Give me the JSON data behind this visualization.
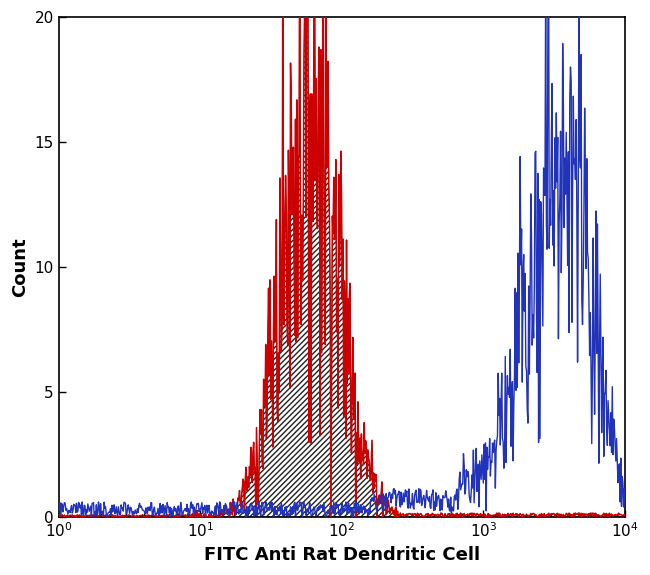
{
  "title": "",
  "xlabel": "FITC Anti Rat Dendritic Cell",
  "ylabel": "Count",
  "xlim": [
    1,
    10000
  ],
  "ylim": [
    0,
    20
  ],
  "yticks": [
    0,
    5,
    10,
    15,
    20
  ],
  "bg_color": "#ffffff",
  "red_color": "#cc0000",
  "blue_color": "#2233bb",
  "hatch_color": "#222222",
  "xlabel_fontsize": 13,
  "ylabel_fontsize": 13,
  "tick_fontsize": 11
}
